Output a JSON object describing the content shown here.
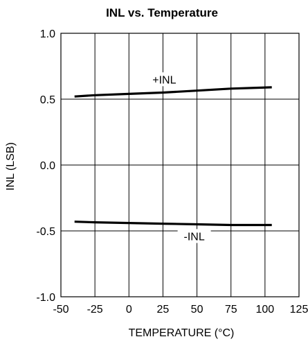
{
  "chart_data": {
    "type": "line",
    "title": "INL vs. Temperature",
    "xlabel": "TEMPERATURE (°C)",
    "ylabel": "INL (LSB)",
    "xlim": [
      -50,
      125
    ],
    "ylim": [
      -1.0,
      1.0
    ],
    "x_ticks": [
      -50,
      -25,
      0,
      25,
      50,
      75,
      100,
      125
    ],
    "x_tick_labels": [
      "-50",
      "-25",
      "0",
      "25",
      "50",
      "75",
      "100",
      "125"
    ],
    "y_ticks": [
      1.0,
      0.5,
      0.0,
      -0.5,
      -1.0
    ],
    "y_tick_labels": [
      "1.0",
      "0.5",
      "0.0",
      "-0.5",
      "-1.0"
    ],
    "grid": true,
    "series": [
      {
        "name": "+INL",
        "x": [
          -40,
          -25,
          0,
          25,
          50,
          75,
          105
        ],
        "y": [
          0.52,
          0.53,
          0.54,
          0.55,
          0.565,
          0.58,
          0.59
        ]
      },
      {
        "name": "-INL",
        "x": [
          -40,
          -25,
          0,
          25,
          50,
          75,
          105
        ],
        "y": [
          -0.43,
          -0.435,
          -0.44,
          -0.445,
          -0.45,
          -0.455,
          -0.455
        ]
      }
    ],
    "annotations": [
      {
        "text": "+INL",
        "x": 26,
        "y": 0.63
      },
      {
        "text": "-INL",
        "x": 48,
        "y": -0.56
      }
    ]
  }
}
